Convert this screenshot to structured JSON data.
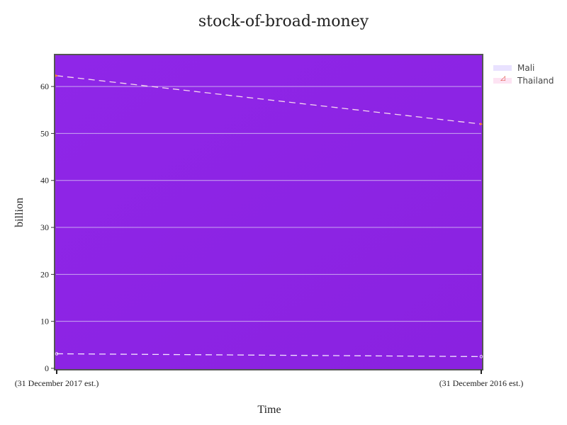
{
  "chart_data": {
    "type": "line",
    "title": "stock-of-broad-money",
    "xlabel": "Time",
    "ylabel": "billion",
    "categories": [
      "(31 December 2017 est.)",
      "(31 December 2016 est.)"
    ],
    "series": [
      {
        "name": "Mali",
        "values": [
          3.1,
          2.5
        ],
        "color": "#f4e6ff",
        "marker": "circle"
      },
      {
        "name": "Thailand",
        "values": [
          62.3,
          52.0
        ],
        "color": "#f7d9ee",
        "marker": "triangle"
      }
    ],
    "ylim": [
      0,
      65
    ],
    "yticks": [
      0,
      10,
      20,
      30,
      40,
      50,
      60
    ],
    "grid": true,
    "legend_position": "top-right",
    "plot_background": "#9124e6",
    "line_style": "dashed"
  }
}
